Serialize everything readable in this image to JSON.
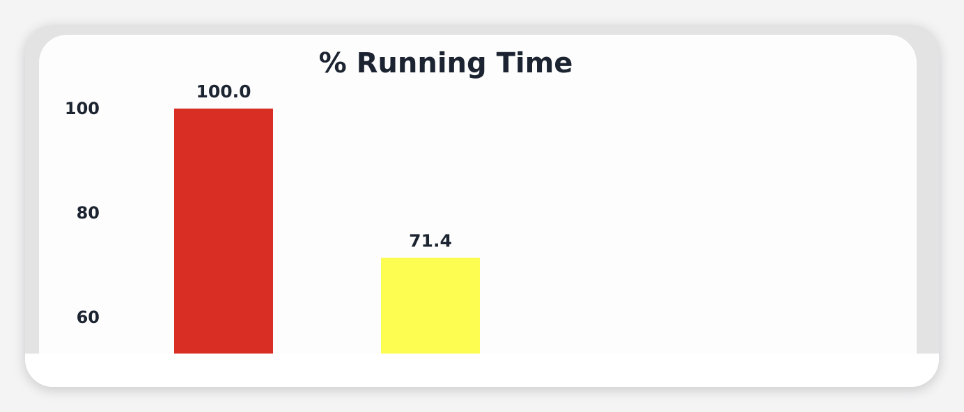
{
  "chart_data": {
    "type": "bar",
    "title": "% Running Time",
    "xlabel": "",
    "ylabel": "",
    "categories": [
      "",
      ""
    ],
    "values": [
      100.0,
      71.4
    ],
    "data_labels": [
      "100.0",
      "71.4"
    ],
    "colors": [
      "#d92e23",
      "#fdfc50"
    ],
    "yticks": [
      100,
      80,
      60
    ],
    "ytick_labels": [
      "100",
      "80",
      "60"
    ],
    "ylim_visible": [
      55,
      100
    ],
    "grid": false,
    "legend": "none"
  }
}
